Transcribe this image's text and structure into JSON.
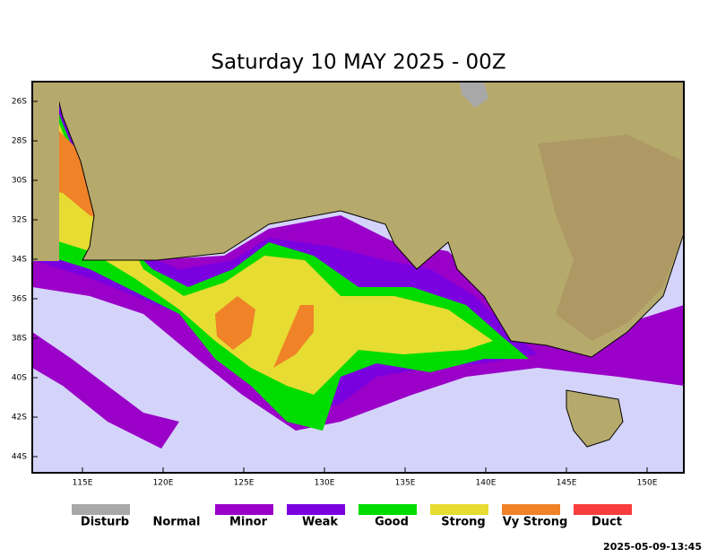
{
  "title": "Saturday 10 MAY 2025 - 00Z",
  "x_tick_labels": [
    "115E",
    "120E",
    "125E",
    "130E",
    "135E",
    "140E",
    "145E",
    "150E"
  ],
  "y_tick_labels": [
    "26S",
    "28S",
    "30S",
    "32S",
    "34S",
    "36S",
    "38S",
    "40S",
    "42S",
    "44S"
  ],
  "legend": [
    {
      "label": "Disturb",
      "color": "#a8a8a8"
    },
    {
      "label": "Normal",
      "color": "#ffffff"
    },
    {
      "label": "Minor",
      "color": "#9a00c8"
    },
    {
      "label": "Weak",
      "color": "#7a00e0"
    },
    {
      "label": "Good",
      "color": "#00dc00"
    },
    {
      "label": "Strong",
      "color": "#e6dc32"
    },
    {
      "label": "Vy Strong",
      "color": "#f08228"
    },
    {
      "label": "Duct",
      "color": "#fa3c3c"
    }
  ],
  "timestamp": "2025-05-09-13:45"
}
